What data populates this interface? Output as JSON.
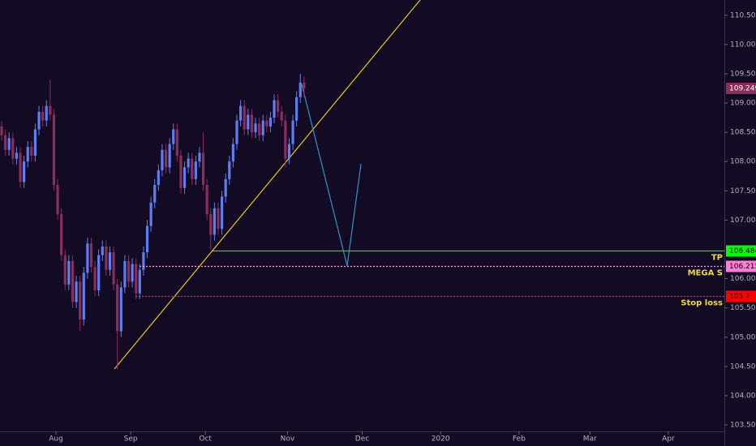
{
  "chart_data": {
    "type": "candlestick",
    "up_color": "#5d7ff2",
    "down_color": "#8a2e5c",
    "open": [
      108.6,
      108.45,
      108.2,
      108.4,
      108.05,
      108.15,
      107.65,
      108.0,
      108.25,
      108.1,
      108.55,
      108.85,
      108.7,
      108.95,
      108.8,
      107.6,
      107.1,
      106.4,
      105.9,
      106.3,
      105.6,
      105.95,
      105.3,
      106.1,
      106.6,
      106.2,
      105.8,
      106.4,
      106.55,
      106.15,
      106.45,
      105.9,
      105.1,
      105.85,
      106.3,
      105.95,
      106.25,
      105.75,
      106.15,
      106.45,
      106.9,
      107.3,
      107.6,
      107.85,
      108.2,
      107.9,
      108.3,
      108.55,
      108.1,
      107.55,
      107.9,
      108.05,
      107.7,
      108.0,
      108.15,
      107.6,
      107.1,
      106.75,
      107.2,
      106.85,
      107.4,
      107.7,
      108.0,
      108.3,
      108.7,
      108.95,
      108.55,
      108.8,
      108.5,
      108.65,
      108.45,
      108.7,
      108.6,
      108.75,
      109.05,
      108.85,
      108.7,
      108.05,
      108.3,
      108.7,
      109.1,
      109.35
    ],
    "high": [
      108.7,
      108.55,
      108.5,
      108.5,
      108.25,
      108.25,
      108.1,
      108.35,
      108.35,
      108.65,
      108.95,
      108.95,
      109.05,
      109.4,
      108.9,
      107.7,
      107.2,
      106.5,
      106.4,
      106.4,
      106.05,
      106.05,
      106.2,
      106.7,
      106.7,
      106.3,
      106.5,
      106.65,
      106.65,
      106.55,
      106.55,
      106.0,
      105.95,
      106.4,
      106.4,
      106.35,
      106.35,
      106.25,
      106.55,
      107.0,
      107.4,
      107.7,
      107.95,
      108.3,
      108.3,
      108.4,
      108.65,
      108.65,
      108.2,
      108.0,
      108.15,
      108.15,
      108.1,
      108.25,
      108.5,
      107.7,
      107.2,
      107.3,
      107.3,
      107.5,
      107.8,
      108.1,
      108.4,
      108.8,
      109.05,
      109.05,
      108.9,
      108.9,
      108.75,
      108.75,
      108.8,
      108.8,
      108.85,
      109.15,
      109.15,
      108.95,
      108.8,
      108.4,
      108.8,
      109.2,
      109.5,
      109.45
    ],
    "low": [
      108.35,
      108.1,
      108.1,
      107.95,
      107.95,
      107.55,
      107.55,
      107.9,
      108.0,
      108.0,
      108.45,
      108.6,
      108.6,
      108.7,
      107.5,
      107.0,
      106.3,
      105.8,
      105.8,
      105.5,
      105.5,
      105.1,
      105.2,
      106.0,
      106.1,
      105.7,
      105.7,
      106.3,
      106.05,
      106.05,
      105.8,
      104.45,
      105.0,
      105.75,
      105.85,
      105.85,
      105.65,
      105.65,
      106.05,
      106.35,
      106.8,
      107.2,
      107.5,
      107.75,
      107.8,
      107.8,
      108.2,
      108.0,
      107.45,
      107.45,
      107.8,
      107.6,
      107.6,
      107.9,
      107.5,
      107.0,
      106.5,
      106.65,
      106.75,
      106.75,
      107.3,
      107.6,
      107.9,
      108.2,
      108.6,
      108.45,
      108.45,
      108.4,
      108.4,
      108.35,
      108.35,
      108.5,
      108.5,
      108.65,
      108.75,
      108.6,
      107.9,
      107.95,
      108.2,
      108.6,
      109.0,
      109.1
    ],
    "close": [
      108.45,
      108.2,
      108.4,
      108.05,
      108.15,
      107.65,
      108.0,
      108.25,
      108.1,
      108.55,
      108.85,
      108.7,
      108.95,
      108.8,
      107.6,
      107.1,
      106.4,
      105.9,
      106.3,
      105.6,
      105.95,
      105.3,
      106.1,
      106.6,
      106.2,
      105.8,
      106.4,
      106.55,
      106.15,
      106.45,
      105.9,
      105.1,
      105.85,
      106.3,
      105.95,
      106.25,
      105.75,
      106.15,
      106.45,
      106.9,
      107.3,
      107.6,
      107.85,
      108.2,
      107.9,
      108.3,
      108.55,
      108.1,
      107.55,
      107.9,
      108.05,
      107.7,
      108.0,
      108.15,
      107.6,
      107.1,
      106.75,
      107.2,
      106.85,
      107.4,
      107.7,
      108.0,
      108.3,
      108.7,
      108.95,
      108.55,
      108.8,
      108.5,
      108.65,
      108.45,
      108.7,
      108.6,
      108.75,
      109.05,
      108.85,
      108.7,
      108.05,
      108.3,
      108.7,
      109.1,
      109.35,
      109.249
    ],
    "xlim": [
      0,
      194
    ],
    "xticks": [
      {
        "value": 15,
        "label": "Aug"
      },
      {
        "value": 35,
        "label": "Sep"
      },
      {
        "value": 55,
        "label": "Oct"
      },
      {
        "value": 77,
        "label": "Nov"
      },
      {
        "value": 97,
        "label": "Dec"
      },
      {
        "value": 118,
        "label": "2020"
      },
      {
        "value": 139,
        "label": "Feb"
      },
      {
        "value": 158,
        "label": "Mar"
      },
      {
        "value": 179,
        "label": "Apr"
      }
    ],
    "ylim": [
      103.39,
      110.76
    ],
    "yticks": [
      {
        "value": 110.5,
        "label": "110.500"
      },
      {
        "value": 110,
        "label": "110.000"
      },
      {
        "value": 109.5,
        "label": "109.500"
      },
      {
        "value": 109,
        "label": "109.000"
      },
      {
        "value": 108.5,
        "label": "108.500"
      },
      {
        "value": 108,
        "label": "108.000"
      },
      {
        "value": 107.5,
        "label": "107.500"
      },
      {
        "value": 107,
        "label": "107.000"
      },
      {
        "value": 106,
        "label": "106.000"
      },
      {
        "value": 105.5,
        "label": "105.500"
      },
      {
        "value": 105,
        "label": "105.000"
      },
      {
        "value": 104.5,
        "label": "104.500"
      },
      {
        "value": 104,
        "label": "104.000"
      },
      {
        "value": 103.5,
        "label": "103.500"
      }
    ],
    "levels": [
      {
        "name": "TP",
        "value": 106.484,
        "color": "#1fd81f",
        "tag_color": "#00ff00",
        "style": "solid"
      },
      {
        "name": "MEGA S",
        "value": 106.215,
        "color": "#f2a8e8",
        "tag_color": "#ff7fd4",
        "style": "dotted"
      },
      {
        "name": "Stop loss",
        "value": 105.7,
        "color": "#ff2020",
        "tag_color": "#ff0000",
        "style": "dotted"
      }
    ],
    "last_color": "#8a2e5c"
  }
}
